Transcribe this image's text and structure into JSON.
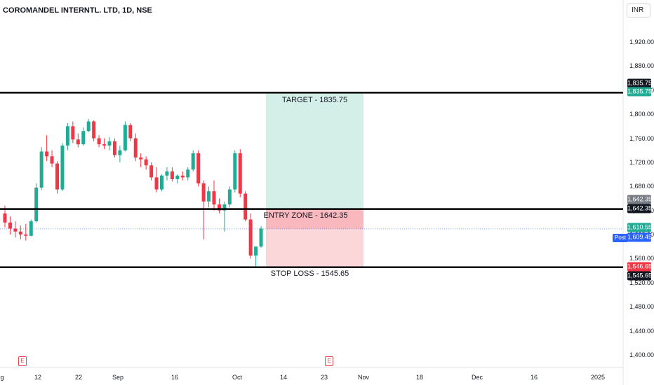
{
  "header": {
    "title": "COROMANDEL INTERNTL. LTD, 1D, NSE",
    "currency": "INR"
  },
  "chart_data": {
    "type": "candlestick",
    "ylim": [
      1380,
      1960
    ],
    "y_ticks": [
      "1,920.00",
      "1,880.00",
      "1,840.00",
      "1,800.00",
      "1,760.00",
      "1,720.00",
      "1,680.00",
      "1,640.00",
      "1,600.00",
      "1,560.00",
      "1,520.00",
      "1,480.00",
      "1,440.00",
      "1,400.00"
    ],
    "x_ticks": [
      "g",
      "12",
      "22",
      "Sep",
      "16",
      "Oct",
      "14",
      "23",
      "Nov",
      "18",
      "Dec",
      "16",
      "2025"
    ],
    "candles": [
      [
        1635,
        1648,
        1612,
        1620
      ],
      [
        1620,
        1630,
        1600,
        1610
      ],
      [
        1610,
        1622,
        1595,
        1605
      ],
      [
        1605,
        1615,
        1592,
        1600
      ],
      [
        1600,
        1618,
        1590,
        1598
      ],
      [
        1598,
        1625,
        1597,
        1622
      ],
      [
        1622,
        1685,
        1620,
        1678
      ],
      [
        1678,
        1745,
        1674,
        1738
      ],
      [
        1738,
        1765,
        1722,
        1730
      ],
      [
        1730,
        1740,
        1712,
        1718
      ],
      [
        1718,
        1722,
        1668,
        1675
      ],
      [
        1675,
        1752,
        1672,
        1748
      ],
      [
        1748,
        1785,
        1740,
        1780
      ],
      [
        1780,
        1788,
        1752,
        1758
      ],
      [
        1758,
        1768,
        1745,
        1750
      ],
      [
        1750,
        1778,
        1748,
        1772
      ],
      [
        1772,
        1792,
        1770,
        1788
      ],
      [
        1788,
        1790,
        1755,
        1760
      ],
      [
        1760,
        1765,
        1745,
        1750
      ],
      [
        1750,
        1760,
        1742,
        1748
      ],
      [
        1748,
        1762,
        1740,
        1755
      ],
      [
        1755,
        1760,
        1728,
        1732
      ],
      [
        1732,
        1748,
        1720,
        1740
      ],
      [
        1740,
        1788,
        1738,
        1782
      ],
      [
        1782,
        1785,
        1755,
        1760
      ],
      [
        1760,
        1768,
        1722,
        1728
      ],
      [
        1728,
        1735,
        1712,
        1725
      ],
      [
        1725,
        1730,
        1708,
        1715
      ],
      [
        1715,
        1720,
        1690,
        1695
      ],
      [
        1695,
        1712,
        1670,
        1675
      ],
      [
        1675,
        1700,
        1672,
        1698
      ],
      [
        1698,
        1712,
        1690,
        1705
      ],
      [
        1705,
        1712,
        1688,
        1692
      ],
      [
        1692,
        1700,
        1685,
        1698
      ],
      [
        1698,
        1705,
        1690,
        1695
      ],
      [
        1695,
        1712,
        1690,
        1708
      ],
      [
        1708,
        1740,
        1705,
        1735
      ],
      [
        1735,
        1740,
        1680,
        1685
      ],
      [
        1685,
        1690,
        1592,
        1655
      ],
      [
        1655,
        1680,
        1645,
        1672
      ],
      [
        1672,
        1690,
        1640,
        1650
      ],
      [
        1650,
        1660,
        1635,
        1640
      ],
      [
        1640,
        1655,
        1605,
        1650
      ],
      [
        1650,
        1680,
        1645,
        1675
      ],
      [
        1675,
        1740,
        1670,
        1735
      ],
      [
        1735,
        1742,
        1662,
        1668
      ],
      [
        1668,
        1672,
        1622,
        1625
      ],
      [
        1625,
        1635,
        1560,
        1565
      ],
      [
        1565,
        1580,
        1545,
        1580
      ],
      [
        1580,
        1614,
        1578,
        1610
      ]
    ],
    "position": {
      "target": 1835.75,
      "entry": 1642.35,
      "stop": 1545.65,
      "last_price": 1609.45,
      "labels": {
        "target": "TARGET - 1835.75",
        "entry": "ENTRY ZONE - 1642.35",
        "stop": "STOP LOSS - 1545.65"
      }
    },
    "price_tags": [
      {
        "text": "1,835.75",
        "price": 1835.75,
        "color": "#131722"
      },
      {
        "text": "1,835.75",
        "price": 1835.75,
        "color": "#22ab94"
      },
      {
        "text": "1,642.35",
        "price": 1642.35,
        "color": "#787b86"
      },
      {
        "text": "1,642.35",
        "price": 1642.35,
        "color": "#131722"
      },
      {
        "text": "1,610.55",
        "price": 1610.55,
        "color": "#22ab94"
      },
      {
        "text": "1,609.45",
        "price": 1609.45,
        "color": "#2962ff"
      },
      {
        "text": "1,546.65",
        "price": 1546.65,
        "color": "#f23645"
      },
      {
        "text": "1,545.65",
        "price": 1545.65,
        "color": "#131722"
      }
    ],
    "post_label": "Post",
    "events": [
      "E",
      "E"
    ],
    "colors": {
      "up": "#22ab94",
      "down": "#f23645",
      "target_fill": "#d3efe8",
      "stop_fill": "#fcd7da",
      "entry_fill": "#f9b8bd",
      "hline": "#000000"
    }
  }
}
